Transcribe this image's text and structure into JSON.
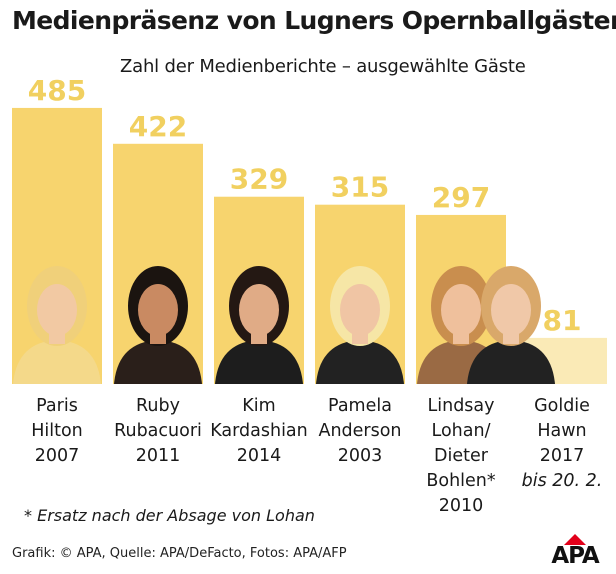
{
  "title": "Medienpräsenz von Lugners Opernballgästen",
  "subtitle": "Zahl der Medienberichte – ausgewählte Gäste",
  "footnote": "* Ersatz nach der Absage von Lohan",
  "source": "Grafik: © APA, Quelle: APA/DeFacto, Fotos: APA/AFP",
  "logo_text": "APA",
  "colors": {
    "bar": "#f7d46e",
    "bar_last": "#faeab6",
    "value_label": "#f1d060",
    "logo_red": "#e2001a"
  },
  "chart_data": {
    "type": "bar",
    "categories": [
      "Paris Hilton 2007",
      "Ruby Rubacuori 2011",
      "Kim Kardashian 2014",
      "Pamela Anderson 2003",
      "Lindsay Lohan/ Dieter Bohlen* 2010",
      "Goldie Hawn 2017 bis 20. 2."
    ],
    "values": [
      485,
      422,
      329,
      315,
      297,
      81
    ],
    "title": "Medienpräsenz von Lugners Opernballgästen",
    "subtitle": "Zahl der Medienberichte – ausgewählte Gäste",
    "ylim": [
      0,
      520
    ],
    "grid": false,
    "legend": "none"
  },
  "labels": [
    {
      "lines": [
        "Paris",
        "Hilton",
        "2007"
      ]
    },
    {
      "lines": [
        "Ruby",
        "Rubacuori",
        "2011"
      ]
    },
    {
      "lines": [
        "Kim",
        "Kardashian",
        "2014"
      ]
    },
    {
      "lines": [
        "Pamela",
        "Anderson",
        "2003"
      ]
    },
    {
      "lines": [
        "Lindsay",
        "Lohan/",
        "Dieter",
        "Bohlen*",
        "2010"
      ]
    },
    {
      "lines": [
        "Goldie",
        "Hawn",
        "2017",
        "bis 20. 2."
      ]
    }
  ],
  "photo_icons": [
    "portrait-photo-paris-hilton",
    "portrait-photo-ruby-rubacuori",
    "portrait-photo-kim-kardashian",
    "portrait-photo-pamela-anderson",
    "portrait-photo-lindsay-lohan",
    "portrait-photo-goldie-hawn"
  ]
}
